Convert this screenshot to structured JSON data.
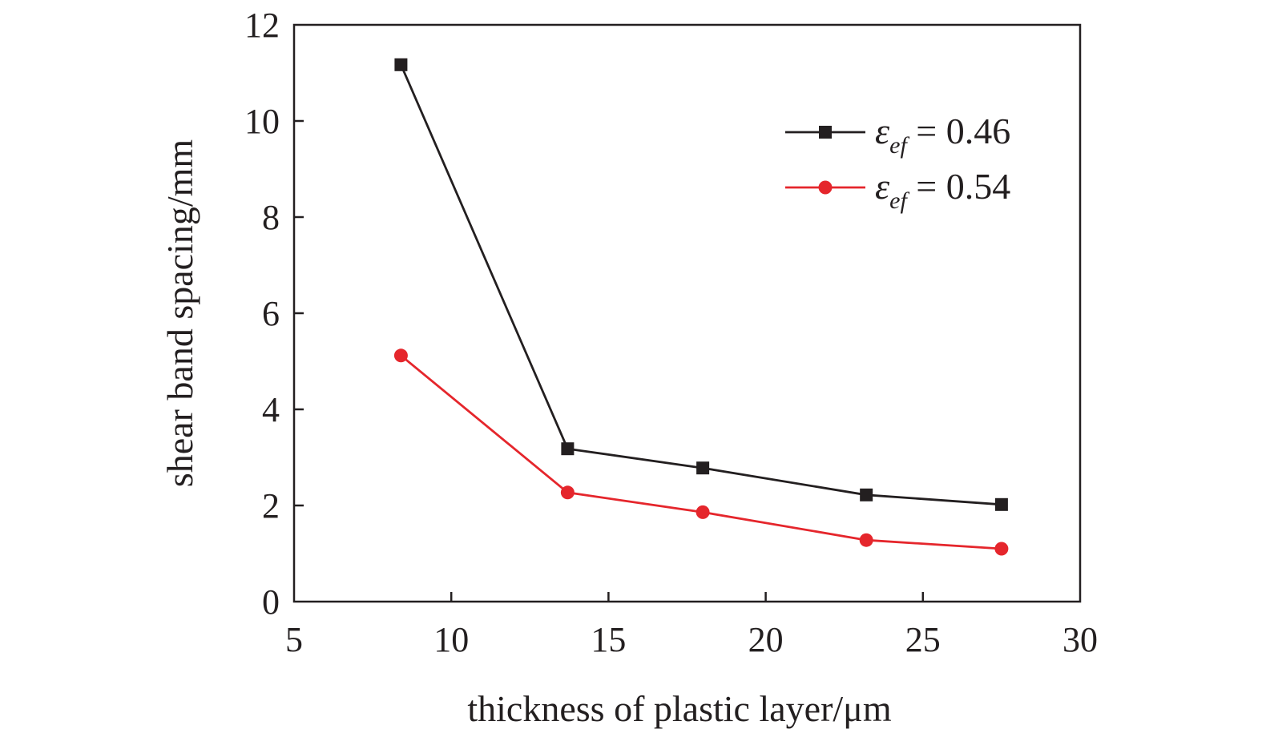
{
  "chart_data": {
    "type": "line",
    "title": "",
    "xlabel": "thickness of plastic layer/μm",
    "ylabel": "shear band spacing/mm",
    "xlim": [
      5,
      30
    ],
    "ylim": [
      0,
      12
    ],
    "xticks": [
      5,
      10,
      15,
      20,
      25,
      30
    ],
    "yticks": [
      0,
      2,
      4,
      6,
      8,
      10,
      12
    ],
    "grid": false,
    "legend_position": "top-right",
    "series": [
      {
        "name": "ε_ef = 0.46",
        "legend_symbol": "ε",
        "legend_subscript": "ef",
        "legend_value": " = 0.46",
        "marker": "square",
        "color": "#231f20",
        "x": [
          8.4,
          13.7,
          18.0,
          23.2,
          27.5
        ],
        "y": [
          11.17,
          3.18,
          2.78,
          2.22,
          2.02
        ]
      },
      {
        "name": "ε_ef = 0.54",
        "legend_symbol": "ε",
        "legend_subscript": "ef",
        "legend_value": " = 0.54",
        "marker": "circle",
        "color": "#e5262c",
        "x": [
          8.4,
          13.7,
          18.0,
          23.2,
          27.5
        ],
        "y": [
          5.12,
          2.27,
          1.86,
          1.28,
          1.1
        ]
      }
    ]
  }
}
